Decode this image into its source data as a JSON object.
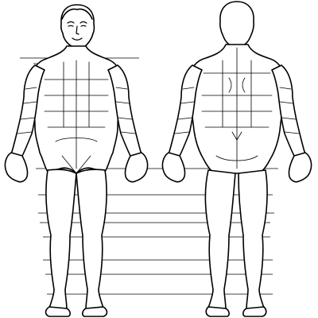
{
  "colors": {
    "background": "#ffffff",
    "outline": "#000000",
    "grid": "#000000"
  },
  "figures": {
    "front": {
      "view": "anterior"
    },
    "back": {
      "view": "posterior"
    }
  }
}
